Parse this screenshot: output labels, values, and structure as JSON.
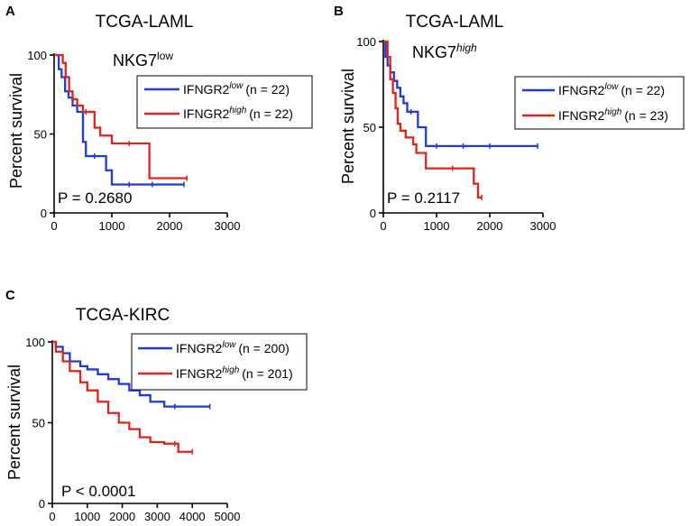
{
  "chart_data": [
    {
      "panel": "A",
      "type": "line",
      "title": "TCGA-LAML",
      "subtitle": {
        "base": "NKG7",
        "sup": "low"
      },
      "ylabel": "Percent survival",
      "xlabel": "",
      "xlim": [
        0,
        3000
      ],
      "ylim": [
        0,
        100
      ],
      "xticks": [
        0,
        1000,
        2000,
        3000
      ],
      "yticks": [
        0,
        50,
        100
      ],
      "annotation": "P = 0.2680",
      "legend_position": "top-right",
      "series": [
        {
          "name": "IFNGR2",
          "sup": "low",
          "n_label": "(n = 22)",
          "color": "#1f3bd6",
          "x": [
            0,
            80,
            130,
            190,
            250,
            320,
            400,
            500,
            550,
            700,
            900,
            1000,
            1300,
            1700,
            2250
          ],
          "y": [
            100,
            91,
            86,
            77,
            73,
            68,
            64,
            45,
            36,
            36,
            27,
            18,
            18,
            18,
            18
          ]
        },
        {
          "name": "IFNGR2",
          "sup": "high",
          "n_label": "(n = 22)",
          "color": "#e0231c",
          "x": [
            0,
            150,
            200,
            260,
            320,
            400,
            500,
            550,
            700,
            800,
            1000,
            1300,
            1650,
            2300
          ],
          "y": [
            100,
            95,
            86,
            77,
            72,
            68,
            64,
            64,
            54,
            49,
            44,
            44,
            22,
            22
          ]
        }
      ]
    },
    {
      "panel": "B",
      "type": "line",
      "title": "TCGA-LAML",
      "subtitle": {
        "base": "NKG7",
        "sup": "high"
      },
      "ylabel": "Percent survival",
      "xlabel": "",
      "xlim": [
        0,
        3000
      ],
      "ylim": [
        0,
        100
      ],
      "xticks": [
        0,
        1000,
        2000,
        3000
      ],
      "yticks": [
        0,
        50,
        100
      ],
      "annotation": "P = 0.2117",
      "legend_position": "top-right",
      "series": [
        {
          "name": "IFNGR2",
          "sup": "low",
          "n_label": "(n = 22)",
          "color": "#1f3bd6",
          "x": [
            0,
            40,
            80,
            130,
            200,
            260,
            320,
            380,
            450,
            520,
            650,
            800,
            1000,
            1500,
            2000,
            2900
          ],
          "y": [
            100,
            91,
            86,
            82,
            77,
            73,
            68,
            64,
            59,
            59,
            50,
            39,
            39,
            39,
            39,
            39
          ]
        },
        {
          "name": "IFNGR2",
          "sup": "high",
          "n_label": "(n = 23)",
          "color": "#e0231c",
          "x": [
            0,
            80,
            130,
            180,
            230,
            270,
            320,
            420,
            560,
            620,
            800,
            1300,
            1700,
            1780,
            1850
          ],
          "y": [
            100,
            91,
            78,
            70,
            61,
            52,
            48,
            44,
            40,
            35,
            26,
            26,
            17,
            9,
            9
          ]
        }
      ]
    },
    {
      "panel": "C",
      "type": "line",
      "title": "TCGA-KIRC",
      "subtitle": null,
      "ylabel": "Percent survival",
      "xlabel": "",
      "xlim": [
        0,
        5000
      ],
      "ylim": [
        0,
        100
      ],
      "xticks": [
        0,
        1000,
        2000,
        3000,
        4000,
        5000
      ],
      "yticks": [
        0,
        50,
        100
      ],
      "annotation": "P < 0.0001",
      "legend_position": "top-right",
      "series": [
        {
          "name": "IFNGR2",
          "sup": "low",
          "n_label": "(n = 200)",
          "color": "#1f3bd6",
          "x": [
            0,
            100,
            300,
            500,
            800,
            1000,
            1300,
            1600,
            1900,
            2200,
            2500,
            2800,
            3200,
            3500,
            4500
          ],
          "y": [
            100,
            97,
            93,
            88,
            85,
            83,
            80,
            77,
            74,
            70,
            67,
            63,
            60,
            60,
            60
          ]
        },
        {
          "name": "IFNGR2",
          "sup": "high",
          "n_label": "(n = 201)",
          "color": "#e0231c",
          "x": [
            0,
            100,
            300,
            500,
            800,
            1000,
            1300,
            1600,
            1900,
            2200,
            2500,
            2800,
            3200,
            3500,
            3600,
            4000
          ],
          "y": [
            100,
            94,
            88,
            82,
            75,
            70,
            63,
            56,
            50,
            46,
            41,
            38,
            37,
            37,
            32,
            32
          ]
        }
      ]
    }
  ]
}
